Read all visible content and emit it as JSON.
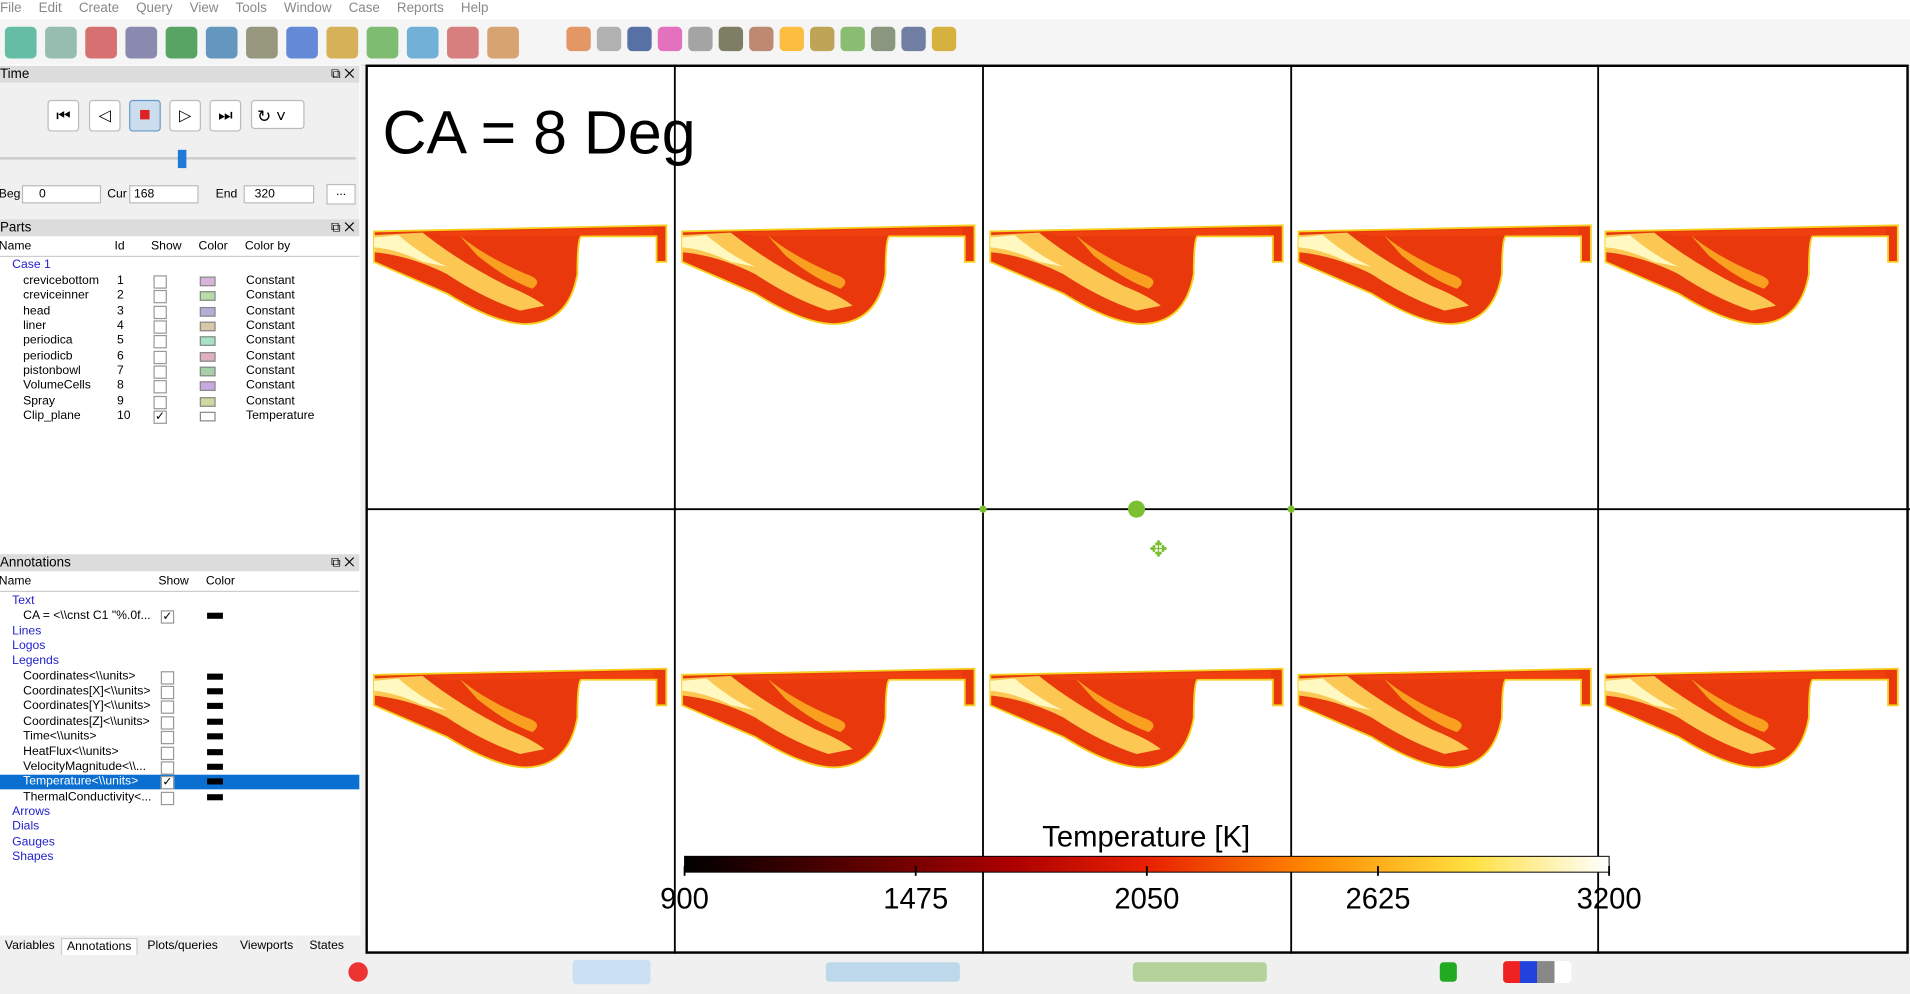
{
  "menu": [
    "File",
    "Edit",
    "Create",
    "Query",
    "View",
    "Tools",
    "Window",
    "Case",
    "Reports",
    "Help"
  ],
  "time_panel": {
    "title": "Time",
    "beg_label": "Beg",
    "beg": "0",
    "cur_label": "Cur",
    "cur": "168",
    "end_label": "End",
    "end": "320",
    "more": "..."
  },
  "parts_panel": {
    "title": "Parts",
    "columns": [
      "Name",
      "Id",
      "Show",
      "Color",
      "Color by"
    ],
    "case": "Case 1",
    "rows": [
      {
        "name": "crevicebottom",
        "id": "1",
        "show": false,
        "color": "#d8b4dc",
        "color_by": "Constant"
      },
      {
        "name": "creviceinner",
        "id": "2",
        "show": false,
        "color": "#b8dca8",
        "color_by": "Constant"
      },
      {
        "name": "head",
        "id": "3",
        "show": false,
        "color": "#b0b0d8",
        "color_by": "Constant"
      },
      {
        "name": "liner",
        "id": "4",
        "show": false,
        "color": "#d8c8a8",
        "color_by": "Constant"
      },
      {
        "name": "periodica",
        "id": "5",
        "show": false,
        "color": "#a8e0c8",
        "color_by": "Constant"
      },
      {
        "name": "periodicb",
        "id": "6",
        "show": false,
        "color": "#e0b0c0",
        "color_by": "Constant"
      },
      {
        "name": "pistonbowl",
        "id": "7",
        "show": false,
        "color": "#a8d0a8",
        "color_by": "Constant"
      },
      {
        "name": "VolumeCells",
        "id": "8",
        "show": false,
        "color": "#c8a8e0",
        "color_by": "Constant"
      },
      {
        "name": "Spray",
        "id": "9",
        "show": false,
        "color": "#d0d8a0",
        "color_by": "Constant"
      },
      {
        "name": "Clip_plane",
        "id": "10",
        "show": true,
        "color": "#ffffff",
        "color_by": "Temperature"
      }
    ]
  },
  "annotations_panel": {
    "title": "Annotations",
    "columns": [
      "Name",
      "Show",
      "Color"
    ],
    "groups": [
      {
        "name": "Text",
        "items": [
          {
            "name": "CA = <\\\\cnst C1 \"%.0f...",
            "show": true
          }
        ]
      },
      {
        "name": "Lines",
        "items": []
      },
      {
        "name": "Logos",
        "items": []
      },
      {
        "name": "Legends",
        "items": [
          {
            "name": "Coordinates<\\\\units>",
            "show": false
          },
          {
            "name": "Coordinates[X]<\\\\units>",
            "show": false
          },
          {
            "name": "Coordinates[Y]<\\\\units>",
            "show": false
          },
          {
            "name": "Coordinates[Z]<\\\\units>",
            "show": false
          },
          {
            "name": "Time<\\\\units>",
            "show": false
          },
          {
            "name": "HeatFlux<\\\\units>",
            "show": false
          },
          {
            "name": "VelocityMagnitude<\\\\...",
            "show": false
          },
          {
            "name": "Temperature<\\\\units>",
            "show": true,
            "selected": true
          },
          {
            "name": "ThermalConductivity<...",
            "show": false
          }
        ]
      },
      {
        "name": "Arrows",
        "items": []
      },
      {
        "name": "Dials",
        "items": []
      },
      {
        "name": "Gauges",
        "items": []
      },
      {
        "name": "Shapes",
        "items": []
      }
    ]
  },
  "tabs": [
    "Variables",
    "Annotations",
    "Plots/queries",
    "Viewports",
    "States"
  ],
  "viewport": {
    "annotation": "CA = 8 Deg",
    "legend_title": "Temperature [K]",
    "legend_ticks": [
      900,
      1475,
      2050,
      2625,
      3200
    ]
  }
}
